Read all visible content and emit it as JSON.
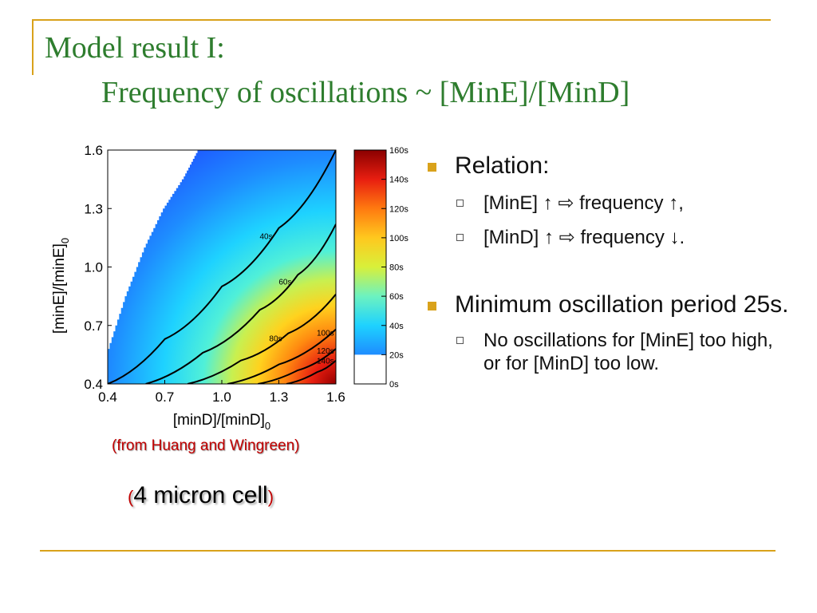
{
  "slide": {
    "title_line1": "Model result I:",
    "title_line2": "Frequency of oscillations  ~ [MinE]/[MinD]"
  },
  "colors": {
    "title": "#2e7d2e",
    "accent_rule": "#d9a21b",
    "caption_red": "#c00000",
    "contour": "#000000"
  },
  "chart_data": {
    "type": "heatmap",
    "x_tick_labels": [
      "0.4",
      "0.7",
      "1.0",
      "1.3",
      "1.6"
    ],
    "y_tick_labels": [
      "0.4",
      "0.7",
      "1.0",
      "1.3",
      "1.6"
    ],
    "xlim": [
      0.4,
      1.6
    ],
    "ylim": [
      0.4,
      1.6
    ],
    "xlabel_main": "[minD]/[minD]",
    "xlabel_sub": "0",
    "ylabel_main": "[minE]/[minE]",
    "ylabel_sub": "0",
    "colorbar": {
      "range": [
        0,
        160
      ],
      "tick_labels": [
        "160s",
        "140s",
        "120s",
        "100s",
        "80s",
        "60s",
        "40s",
        "20s",
        "0s"
      ],
      "white_below": 20
    },
    "no_oscillation_boundary": [
      [
        0.4,
        0.55
      ],
      [
        0.5,
        0.85
      ],
      [
        0.6,
        1.1
      ],
      [
        0.7,
        1.3
      ],
      [
        0.8,
        1.45
      ],
      [
        0.88,
        1.6
      ]
    ],
    "contours": [
      {
        "label": "40s",
        "points": [
          [
            0.4,
            0.4
          ],
          [
            0.7,
            0.63
          ],
          [
            1.0,
            0.9
          ],
          [
            1.3,
            1.2
          ],
          [
            1.6,
            1.6
          ]
        ]
      },
      {
        "label": "60s",
        "points": [
          [
            0.6,
            0.4
          ],
          [
            0.9,
            0.56
          ],
          [
            1.2,
            0.78
          ],
          [
            1.4,
            0.96
          ],
          [
            1.6,
            1.22
          ]
        ]
      },
      {
        "label": "80s",
        "points": [
          [
            0.82,
            0.4
          ],
          [
            1.1,
            0.52
          ],
          [
            1.35,
            0.66
          ],
          [
            1.6,
            0.86
          ]
        ]
      },
      {
        "label": "100s",
        "points": [
          [
            1.03,
            0.4
          ],
          [
            1.3,
            0.5
          ],
          [
            1.6,
            0.68
          ]
        ]
      },
      {
        "label": "120s",
        "points": [
          [
            1.19,
            0.4
          ],
          [
            1.4,
            0.47
          ],
          [
            1.6,
            0.58
          ]
        ]
      },
      {
        "label": "140s",
        "points": [
          [
            1.34,
            0.4
          ],
          [
            1.5,
            0.46
          ],
          [
            1.6,
            0.52
          ]
        ]
      }
    ],
    "source_note": "(from Huang and Wingreen)",
    "cell_note": "4 micron cell"
  },
  "bullets": [
    {
      "text": "Relation:",
      "sub": [
        "[MinE] ↑  ⇨  frequency ↑,",
        "[MinD] ↑  ⇨  frequency ↓."
      ]
    },
    {
      "text": "Minimum oscillation period 25s.",
      "sub": [
        "No oscillations for [MinE] too high, or for [MinD] too low."
      ]
    }
  ]
}
